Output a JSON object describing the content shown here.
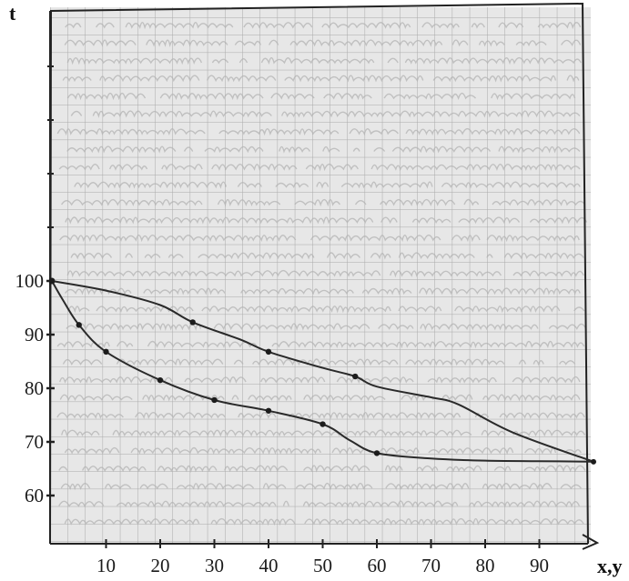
{
  "chart_data": {
    "type": "line",
    "title": "",
    "xlabel": "x,y",
    "ylabel": "t",
    "xlim": [
      0,
      100
    ],
    "ylim": [
      50,
      150
    ],
    "x_ticks": [
      10,
      20,
      30,
      40,
      50,
      60,
      70,
      80,
      90
    ],
    "y_ticks": [
      60,
      70,
      80,
      90,
      100
    ],
    "grid": true,
    "background": "handwritten graph paper",
    "series": [
      {
        "points": [
          [
            0,
            100
          ],
          [
            10,
            98.2
          ],
          [
            20,
            95.5
          ],
          [
            26,
            92.3
          ],
          [
            35,
            89
          ],
          [
            40,
            86.8
          ],
          [
            50,
            83.8
          ],
          [
            56,
            82.2
          ],
          [
            60,
            80.3
          ],
          [
            70,
            78.3
          ],
          [
            75,
            77
          ],
          [
            85,
            71.8
          ],
          [
            100,
            66.3
          ]
        ],
        "markers": [
          [
            26,
            92.3
          ],
          [
            40,
            86.8
          ],
          [
            56,
            82.2
          ]
        ],
        "color": "#2a2a2a"
      },
      {
        "points": [
          [
            0,
            100
          ],
          [
            2,
            96.5
          ],
          [
            5,
            91.8
          ],
          [
            10,
            86.8
          ],
          [
            20,
            81.5
          ],
          [
            30,
            77.8
          ],
          [
            40,
            75.8
          ],
          [
            50,
            73.3
          ],
          [
            55,
            70.3
          ],
          [
            60,
            67.9
          ],
          [
            70,
            66.9
          ],
          [
            80,
            66.5
          ],
          [
            90,
            66.4
          ],
          [
            100,
            66.3
          ]
        ],
        "markers": [
          [
            5,
            91.8
          ],
          [
            10,
            86.8
          ],
          [
            20,
            81.5
          ],
          [
            30,
            77.8
          ],
          [
            40,
            75.8
          ],
          [
            50,
            73.3
          ],
          [
            60,
            67.9
          ]
        ],
        "color": "#2a2a2a"
      }
    ]
  }
}
